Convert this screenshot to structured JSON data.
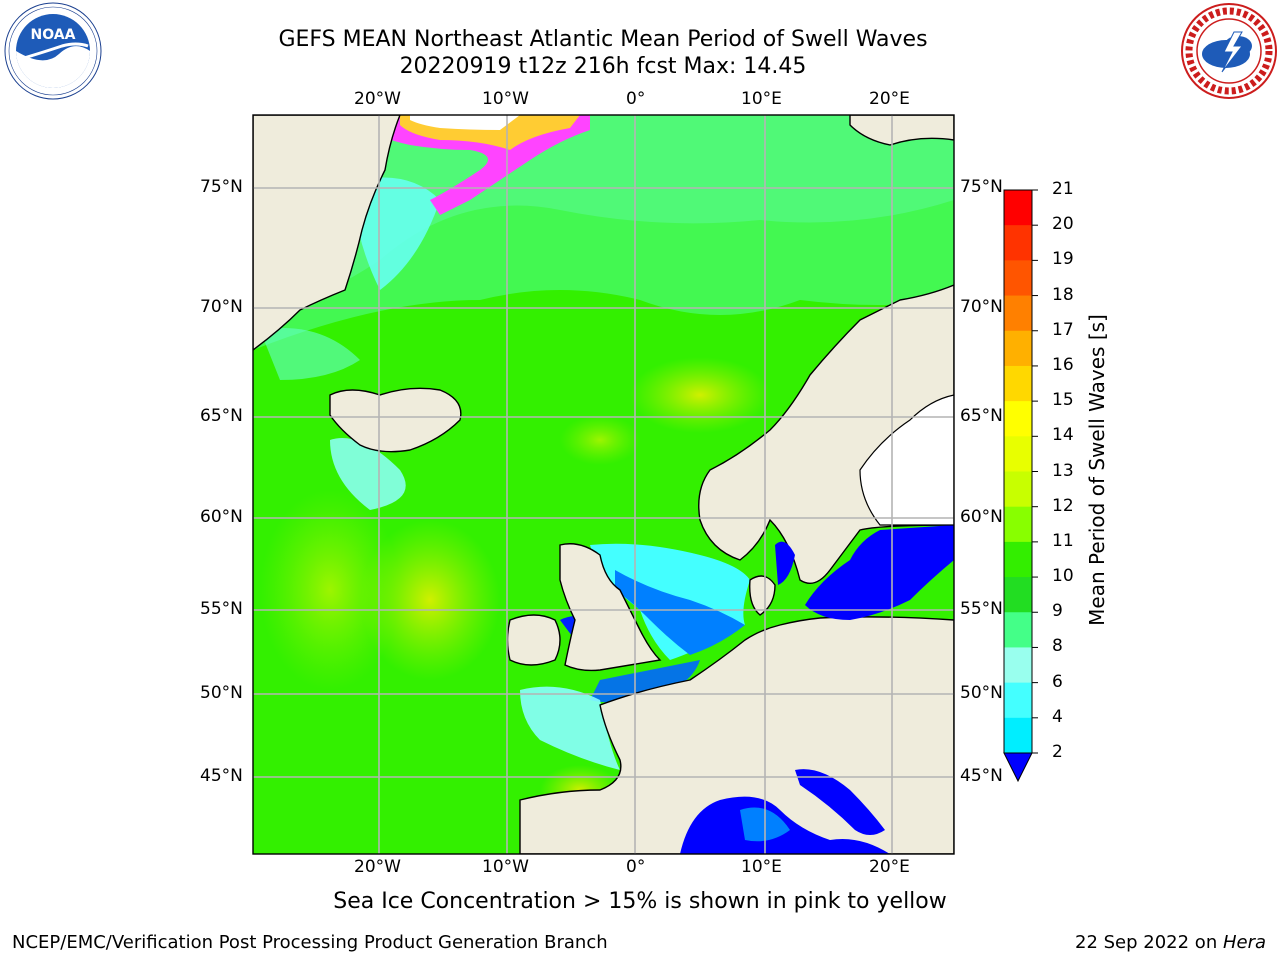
{
  "title": {
    "line1": "GEFS MEAN Northeast Atlantic Mean Period of Swell Waves",
    "line2": "20220919 t12z 216h fcst   Max: 14.45"
  },
  "logos": {
    "noaa": {
      "text": "NOAA",
      "ring_text": "NATIONAL OCEANIC AND ATMOSPHERIC ADMINISTRATION · U.S. DEPARTMENT OF COMMERCE"
    },
    "nws": {
      "ring_text": "NATIONAL WEATHER SERVICE"
    }
  },
  "map": {
    "lon_labels": [
      "20°W",
      "10°W",
      "0°",
      "10°E",
      "20°E"
    ],
    "lat_labels": [
      "75°N",
      "70°N",
      "65°N",
      "60°N",
      "55°N",
      "50°N",
      "45°N"
    ],
    "land_color": "#efecdc",
    "ocean_base_color": "#33f000",
    "grid_color": "#b4b4b4"
  },
  "colorbar": {
    "title": "Mean Period of Swell Waves [s]",
    "ticks": [
      "21",
      "20",
      "19",
      "18",
      "17",
      "16",
      "15",
      "14",
      "13",
      "12",
      "11",
      "10",
      "9",
      "8",
      "6",
      "4",
      "2"
    ],
    "colors": [
      "#ff0000",
      "#ff3300",
      "#ff5500",
      "#ff8000",
      "#ffb000",
      "#ffd800",
      "#ffff00",
      "#e8ff00",
      "#c8ff00",
      "#88ff00",
      "#33ee00",
      "#22dd22",
      "#44ff88",
      "#99ffee",
      "#44ffff",
      "#00eeff",
      "#0080ff"
    ],
    "extend_color": "#0000ff"
  },
  "caption": "Sea Ice Concentration > 15% is shown in pink to yellow",
  "footer": {
    "left": "NCEP/EMC/Verification Post Processing Product Generation Branch",
    "right_date": "22 Sep 2022 on ",
    "right_host": "Hera"
  }
}
